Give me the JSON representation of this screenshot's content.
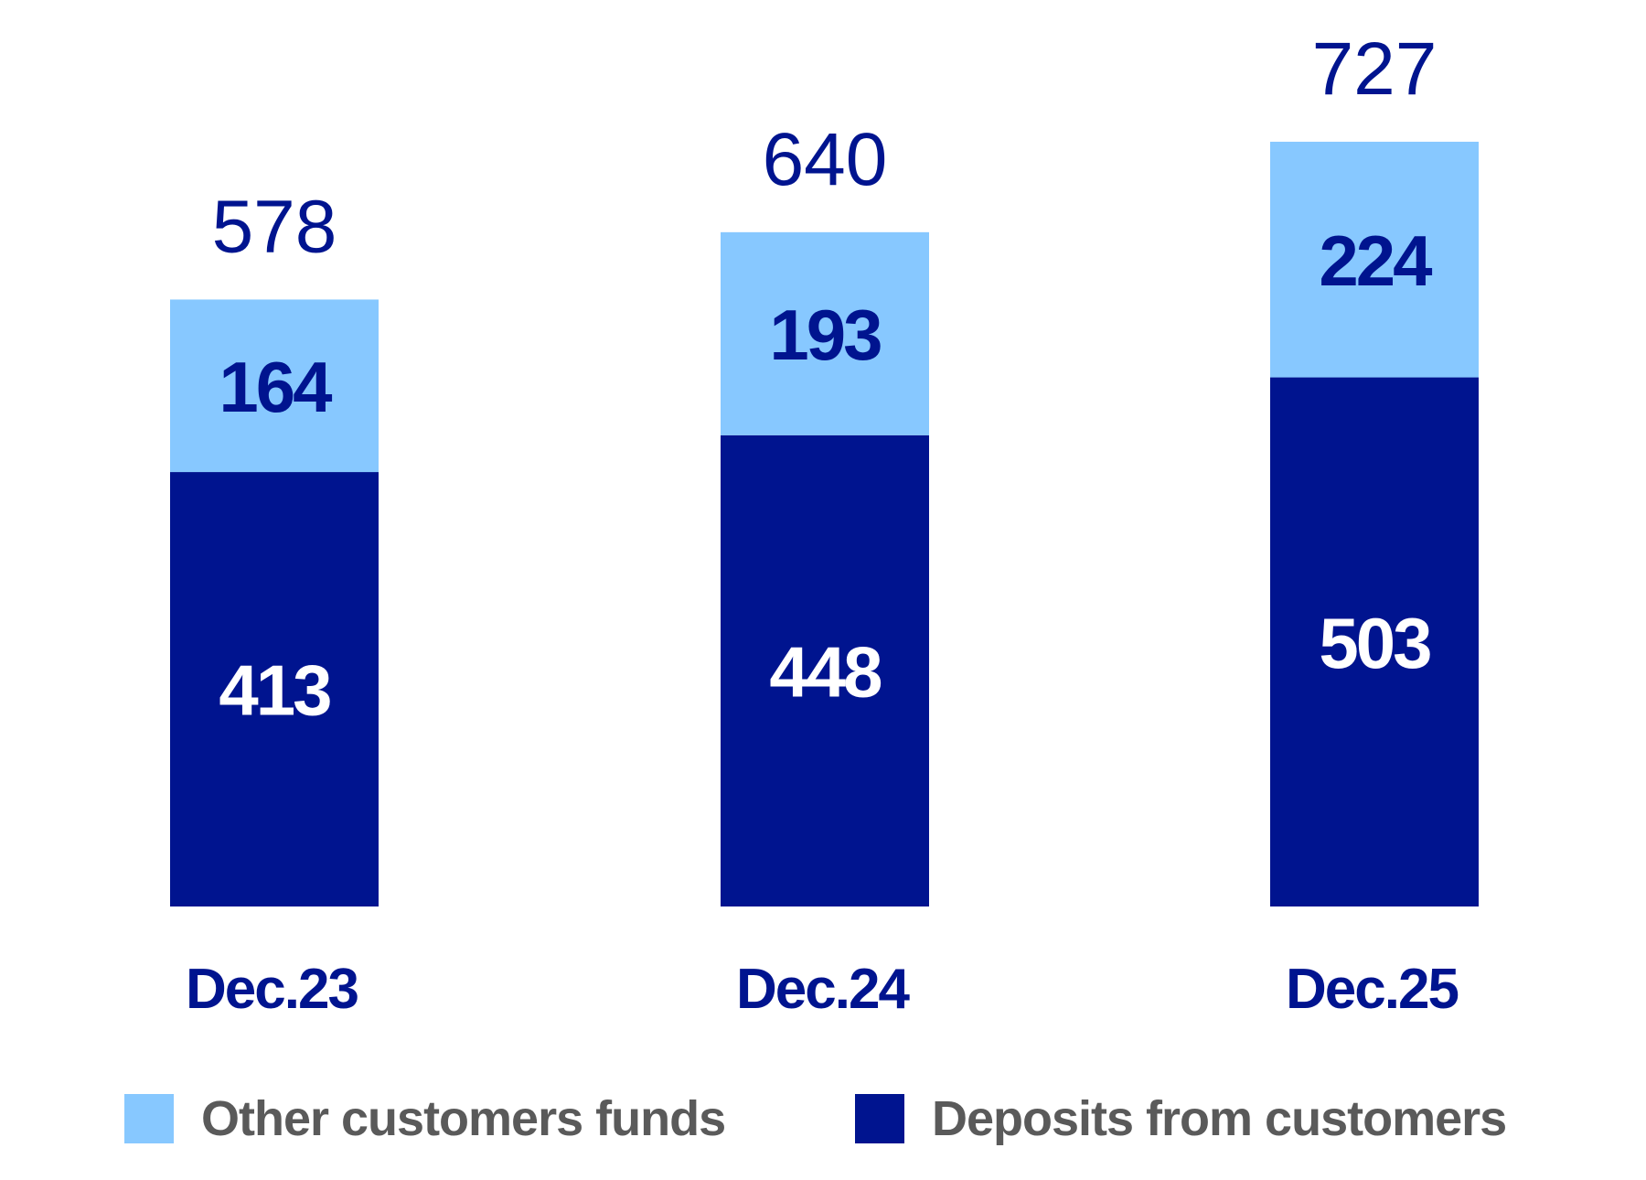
{
  "chart_data": {
    "type": "bar",
    "stacked": true,
    "categories": [
      "Dec.23",
      "Dec.24",
      "Dec.25"
    ],
    "series": [
      {
        "name": "Deposits from customers",
        "values": [
          413,
          448,
          503
        ],
        "color": "#00148F"
      },
      {
        "name": "Other customers funds",
        "values": [
          164,
          193,
          224
        ],
        "color": "#87C8FF"
      }
    ],
    "totals": [
      578,
      640,
      727
    ],
    "title": "",
    "xlabel": "",
    "ylabel": "",
    "grid": false,
    "legend": "bottom"
  },
  "legend": {
    "items": [
      {
        "label": "Other customers funds",
        "color": "#87C8FF"
      },
      {
        "label": "Deposits from customers",
        "color": "#00148F"
      }
    ]
  }
}
